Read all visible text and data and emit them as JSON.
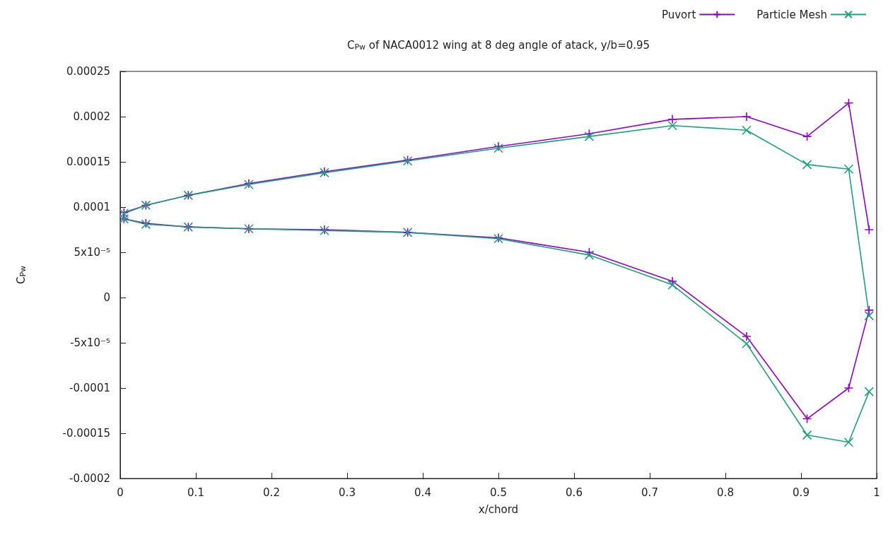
{
  "chart_data": {
    "type": "line",
    "title": "C$_{Pw}$ of NACA0012 wing at 8 deg angle of atack, y/b=0.95",
    "xlabel": "x/chord",
    "ylabel": "C$_{Pw}$",
    "xlim": [
      0,
      1
    ],
    "xticks": [
      0,
      0.1,
      0.2,
      0.3,
      0.4,
      0.5,
      0.6,
      0.7,
      0.8,
      0.9,
      1
    ],
    "ylim": [
      -0.0002,
      0.00025
    ],
    "yticks": [
      -0.0002,
      -0.00015,
      -0.0001,
      {
        "value": -5e-05,
        "label": "-5x10⁻⁵"
      },
      0,
      {
        "value": 5e-05,
        "label": "5x10⁻⁵"
      },
      0.0001,
      0.00015,
      0.0002,
      0.00025
    ],
    "grid": false,
    "legend": "top right",
    "line_style": "solid",
    "series": [
      {
        "name": "Puvort",
        "color": "#9400d3",
        "marker": "plus",
        "x": [
          0.99,
          0.963,
          0.908,
          0.828,
          0.73,
          0.62,
          0.5,
          0.38,
          0.27,
          0.17,
          0.09,
          0.034,
          0.005,
          0.005,
          0.034,
          0.09,
          0.17,
          0.27,
          0.38,
          0.5,
          0.62,
          0.73,
          0.828,
          0.908,
          0.963,
          0.99
        ],
        "values": [
          7.5e-05,
          0.000215,
          0.000178,
          0.0002,
          0.000197,
          0.000181,
          0.000167,
          0.000152,
          0.000139,
          0.000126,
          0.000113,
          0.000102,
          9.4e-05,
          8.7e-05,
          8.2e-05,
          7.8e-05,
          7.6e-05,
          7.5e-05,
          7.2e-05,
          6.6e-05,
          5e-05,
          1.8e-05,
          -4.3e-05,
          -0.000134,
          -0.0001,
          -1.4e-05
        ]
      },
      {
        "name": "Particle Mesh",
        "color": "#1aa37a",
        "marker": "cross",
        "x": [
          0.99,
          0.963,
          0.908,
          0.828,
          0.73,
          0.62,
          0.5,
          0.38,
          0.27,
          0.17,
          0.09,
          0.034,
          0.005,
          0.005,
          0.034,
          0.09,
          0.17,
          0.27,
          0.38,
          0.5,
          0.62,
          0.73,
          0.828,
          0.908,
          0.963,
          0.99
        ],
        "values": [
          -2e-05,
          0.000142,
          0.000147,
          0.000185,
          0.00019,
          0.000178,
          0.000165,
          0.000151,
          0.000138,
          0.000125,
          0.000113,
          0.000102,
          9.3e-05,
          8.7e-05,
          8.1e-05,
          7.8e-05,
          7.6e-05,
          7.4e-05,
          7.2e-05,
          6.5e-05,
          4.7e-05,
          1.4e-05,
          -5.1e-05,
          -0.000152,
          -0.00016,
          -0.000104
        ]
      }
    ]
  }
}
